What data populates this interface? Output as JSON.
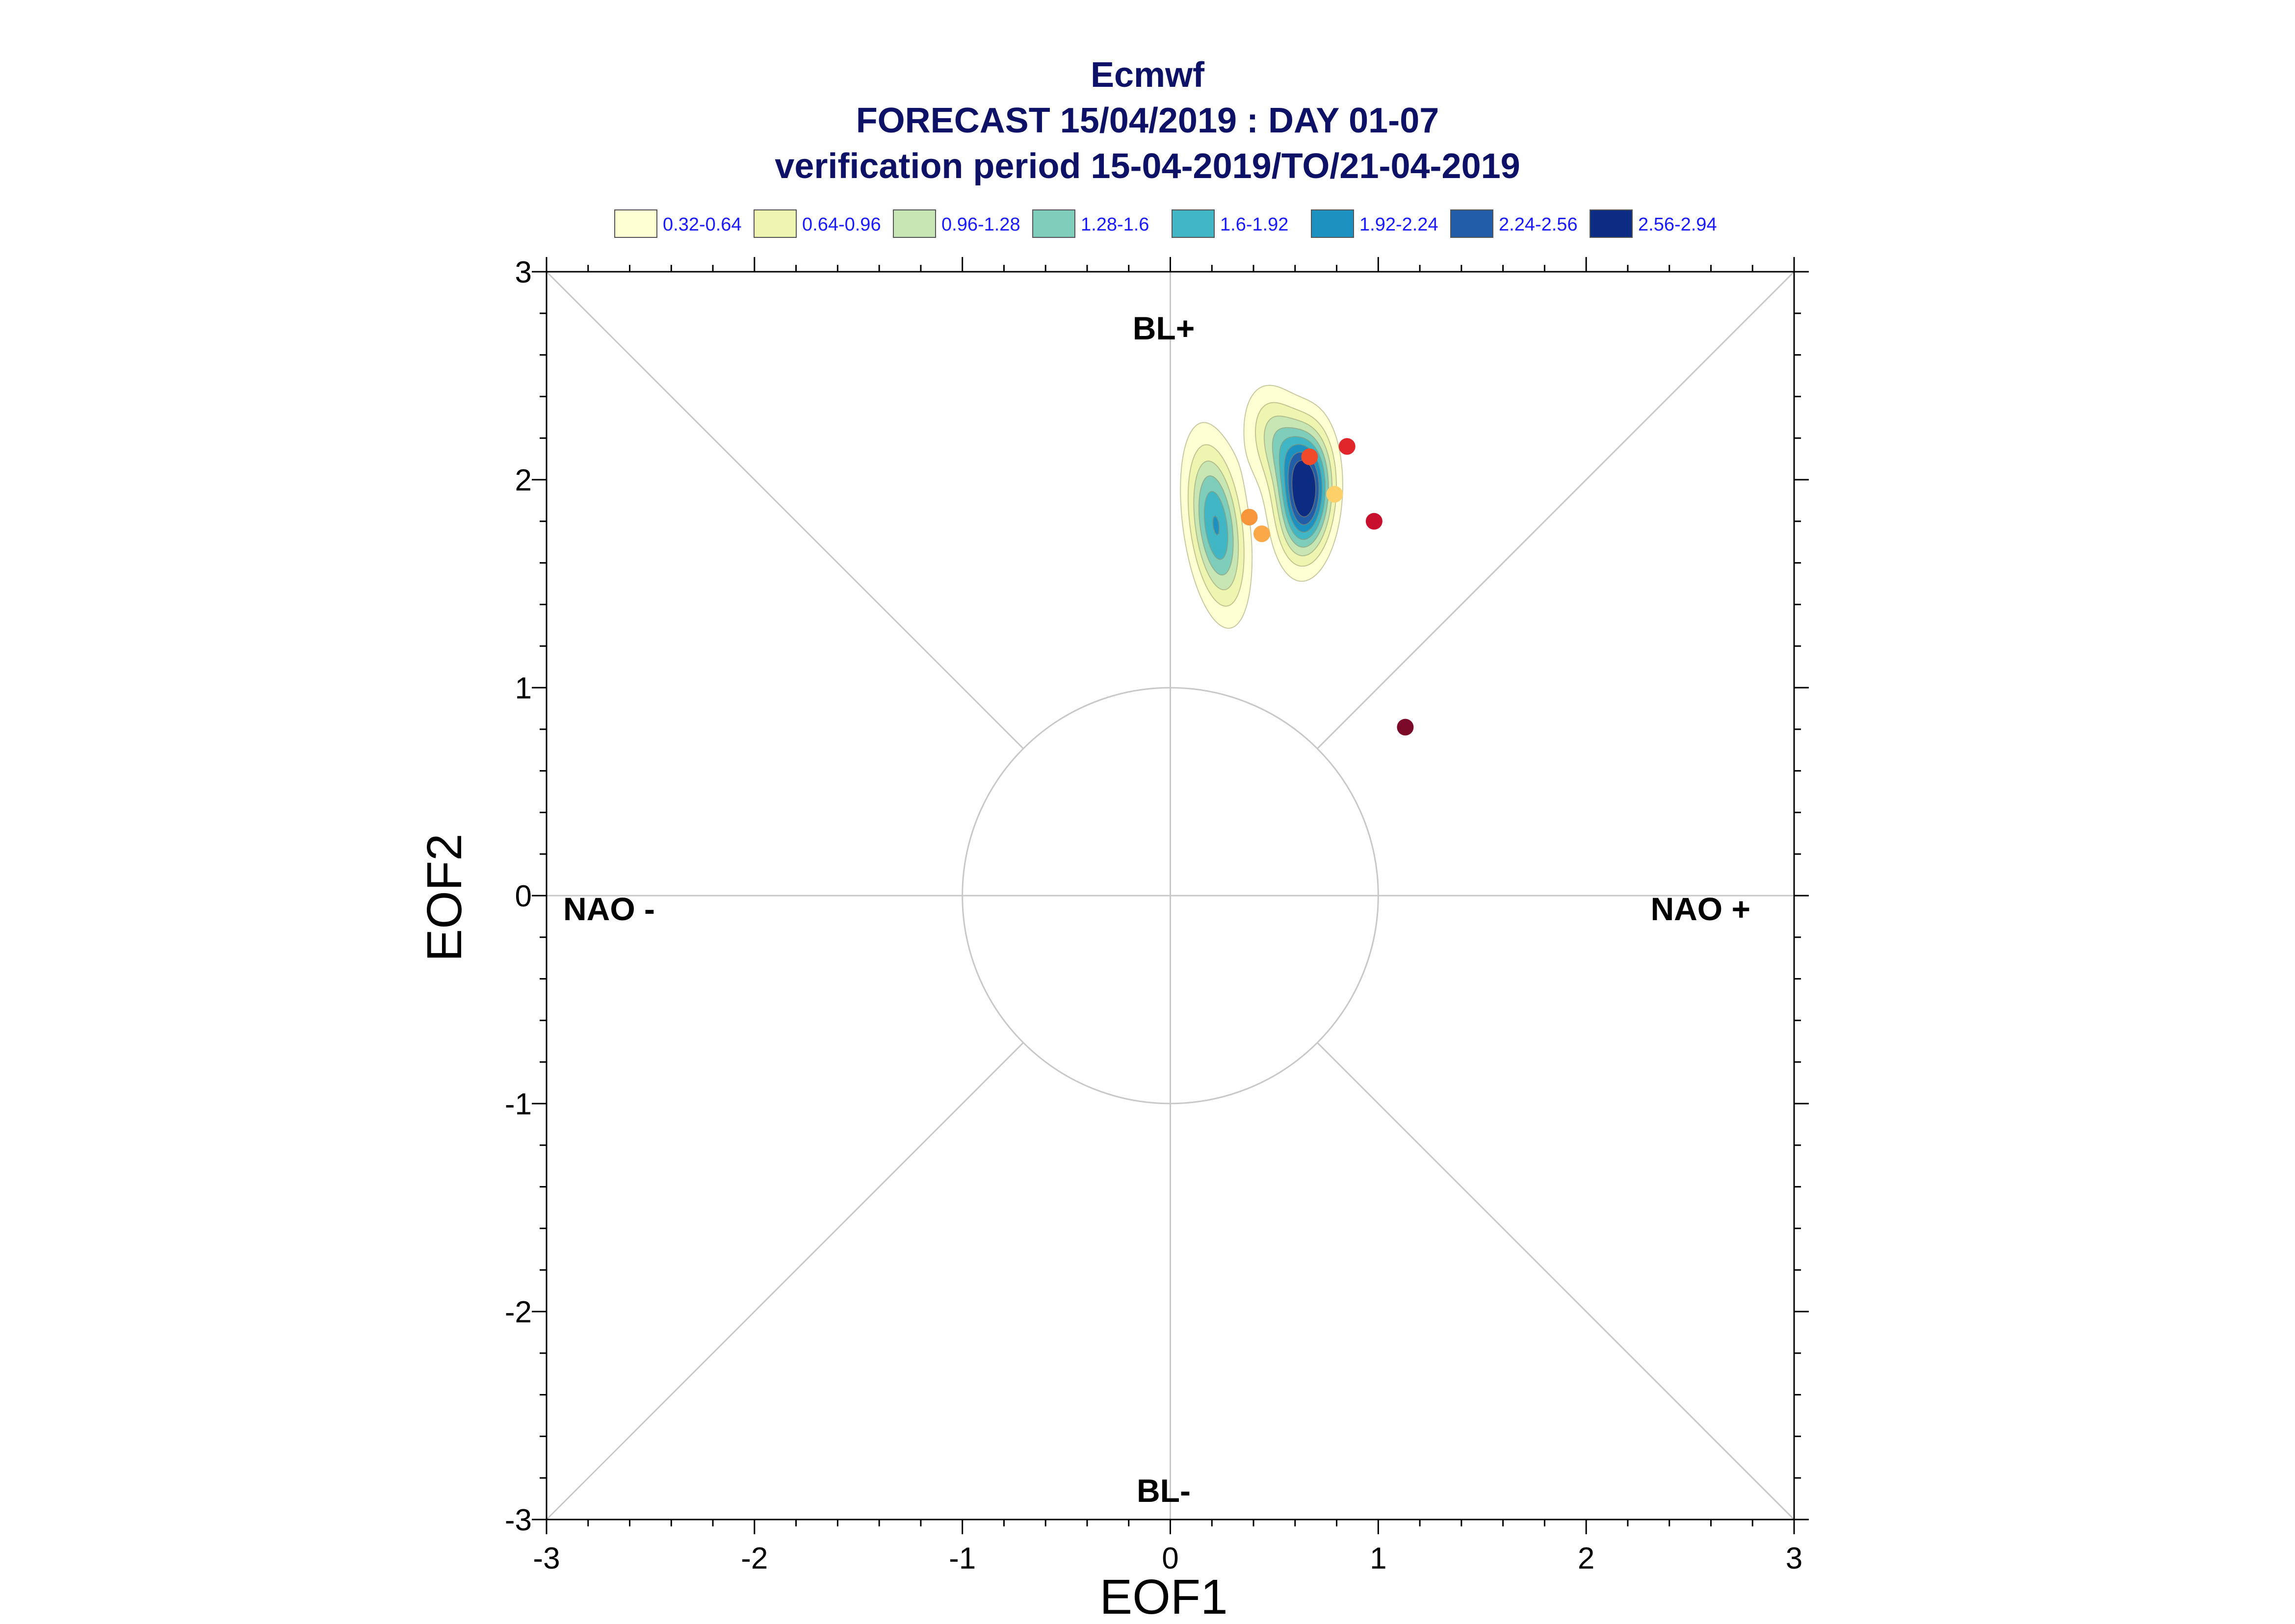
{
  "chart_data": {
    "type": "scatter",
    "title": "Ecmwf",
    "subtitle": "FORECAST 15/04/2019 : DAY 01-07",
    "subtitle2": "verification period 15-04-2019/TO/21-04-2019",
    "xlabel": "EOF1",
    "ylabel": "EOF2",
    "xlim": [
      -3,
      3
    ],
    "ylim": [
      -3,
      3
    ],
    "x_ticks": [
      "-3",
      "-2",
      "-1",
      "0",
      "1",
      "2",
      "3"
    ],
    "y_ticks": [
      "-3",
      "-2",
      "-1",
      "0",
      "1",
      "2",
      "3"
    ],
    "regime_labels": {
      "top": "BL+",
      "bottom": "BL-",
      "left": "NAO -",
      "right": "NAO +"
    },
    "unit_circle_radius": 1,
    "legend": {
      "placement": "top",
      "items": [
        {
          "label": "0.32-0.64",
          "color": "#ffffd4"
        },
        {
          "label": "0.64-0.96",
          "color": "#eef5b0"
        },
        {
          "label": "0.96-1.28",
          "color": "#c7e6b4"
        },
        {
          "label": "1.28-1.6",
          "color": "#7fcdbb"
        },
        {
          "label": "1.6-1.92",
          "color": "#41b6c4"
        },
        {
          "label": "1.92-2.24",
          "color": "#1d91c0"
        },
        {
          "label": "2.24-2.56",
          "color": "#225ea8"
        },
        {
          "label": "2.56-2.94",
          "color": "#0c2c84"
        }
      ]
    },
    "density_levels": [
      0.32,
      0.64,
      0.96,
      1.28,
      1.6,
      1.92,
      2.24,
      2.56,
      2.94
    ],
    "density_blobs": [
      {
        "x": 0.22,
        "y": 1.78,
        "sx": 0.09,
        "sy": 0.26,
        "amp": 1.95,
        "rho": -0.35
      },
      {
        "x": 0.65,
        "y": 1.93,
        "sx": 0.085,
        "sy": 0.2,
        "amp": 2.85,
        "rho": 0.1
      },
      {
        "x": 0.52,
        "y": 2.18,
        "sx": 0.1,
        "sy": 0.17,
        "amp": 1.15,
        "rho": -0.3
      }
    ],
    "points": [
      {
        "x": 0.67,
        "y": 2.11,
        "color": "#f04a2a"
      },
      {
        "x": 0.85,
        "y": 2.16,
        "color": "#e0262a"
      },
      {
        "x": 0.79,
        "y": 1.93,
        "color": "#fdd06a"
      },
      {
        "x": 0.38,
        "y": 1.82,
        "color": "#f7953a"
      },
      {
        "x": 0.44,
        "y": 1.74,
        "color": "#fba848"
      },
      {
        "x": 0.98,
        "y": 1.8,
        "color": "#c8102e"
      },
      {
        "x": 1.13,
        "y": 0.81,
        "color": "#7a0a28"
      }
    ]
  }
}
